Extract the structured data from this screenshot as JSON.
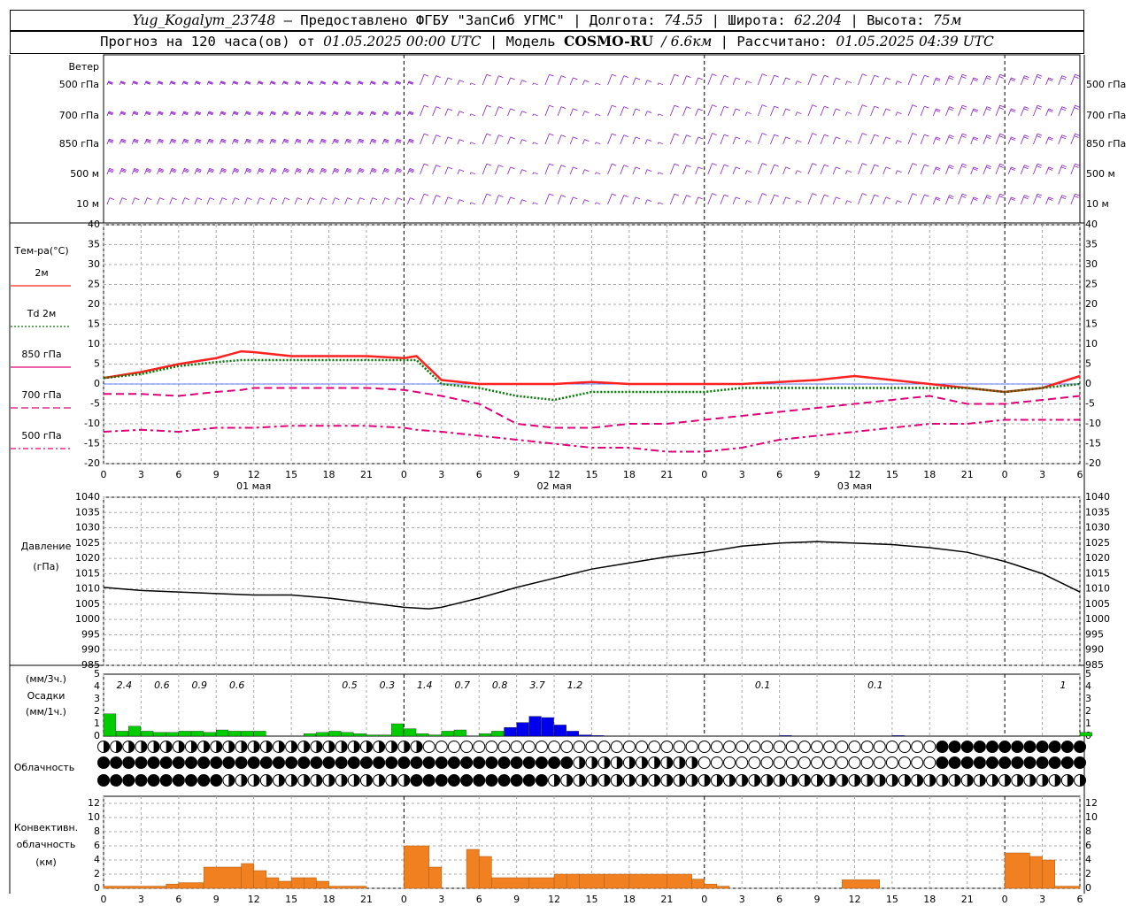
{
  "header": {
    "station": "Yug_Kogalym_23748",
    "provider": "— Предоставлено ФГБУ \"ЗапСиб УГМС\"",
    "lon_label": "Долгота:",
    "lon": "74.55",
    "lat_label": "Широта:",
    "lat": "62.204",
    "alt_label": "Высота:",
    "alt": "75м",
    "forecast_label": "Прогноз на 120 часа(ов) от",
    "forecast_from": "01.05.2025 00:00 UTC",
    "model_label": "Модель",
    "model": "COSMO-RU",
    "resolution": "/ 6.6км",
    "computed_label": "Рассчитано:",
    "computed": "01.05.2025 04:39 UTC"
  },
  "time_axis": {
    "hour_ticks": [
      "0",
      "3",
      "6",
      "9",
      "12",
      "15",
      "18",
      "21",
      "0",
      "3",
      "6",
      "9",
      "12",
      "15",
      "18",
      "21",
      "0",
      "3",
      "6",
      "9",
      "12",
      "15",
      "18",
      "21",
      "0",
      "3",
      "6"
    ],
    "day_labels": [
      "01 мая",
      "02 мая",
      "03 мая"
    ]
  },
  "wind_panel": {
    "title": "Ветер",
    "levels": [
      "500 гПа",
      "700 гПа",
      "850 гПа",
      "500 м",
      "10  м"
    ]
  },
  "temperature_panel": {
    "title": "Тем-ра(°C)",
    "legend": [
      {
        "label": "2м",
        "color": "#ff2020",
        "style": "solid"
      },
      {
        "label": "Td  2м",
        "color": "#007a00",
        "style": "dotted"
      },
      {
        "label": "850 гПа",
        "color": "#e0007a",
        "style": "solid-thin"
      },
      {
        "label": "700 гПа",
        "color": "#e0007a",
        "style": "dash"
      },
      {
        "label": "500 гПа",
        "color": "#e0007a",
        "style": "dashdot"
      }
    ],
    "ticks": [
      "40",
      "35",
      "30",
      "25",
      "20",
      "15",
      "10",
      "5",
      "0",
      "-5",
      "-10",
      "-15",
      "-20"
    ]
  },
  "pressure_panel": {
    "title": "Давление",
    "unit": "(гПа)",
    "ticks": [
      "1040",
      "1035",
      "1030",
      "1025",
      "1020",
      "1015",
      "1010",
      "1005",
      "1000",
      "995",
      "990",
      "985"
    ]
  },
  "precip_panel": {
    "unit3": "(мм/3ч.)",
    "title": "Осадки",
    "unit1": "(мм/1ч.)",
    "ticks": [
      "5",
      "4",
      "3",
      "2",
      "1",
      "0"
    ],
    "sums": [
      {
        "t": 3,
        "v": "2.4"
      },
      {
        "t": 6,
        "v": "0.6"
      },
      {
        "t": 9,
        "v": "0.9"
      },
      {
        "t": 12,
        "v": "0.6"
      },
      {
        "t": 21,
        "v": "0.5"
      },
      {
        "t": 24,
        "v": "0.3"
      },
      {
        "t": 27,
        "v": "1.4"
      },
      {
        "t": 30,
        "v": "0.7"
      },
      {
        "t": 33,
        "v": "0.8"
      },
      {
        "t": 36,
        "v": "3.7"
      },
      {
        "t": 39,
        "v": "1.2"
      },
      {
        "t": 54,
        "v": "0.1"
      },
      {
        "t": 63,
        "v": "0.1"
      },
      {
        "t": 78,
        "v": "1"
      }
    ]
  },
  "cloud_panel": {
    "title": "Облачность"
  },
  "convective_panel": {
    "title1": "Конвективн.",
    "title2": "облачность",
    "unit": "(км)",
    "ticks": [
      "12",
      "10",
      "8",
      "6",
      "4",
      "2",
      "0"
    ]
  },
  "colors": {
    "t2m": "#ff2020",
    "td2m": "#007a00",
    "upper": "#e0007a",
    "wind": "#8a1ccc",
    "precip_rain": "#00cc00",
    "precip_heavy": "#0000ee",
    "convective": "#f08020",
    "pressure": "#000000"
  },
  "chart_data": [
    {
      "type": "line",
      "name": "temperature",
      "x_hours": [
        0,
        3,
        6,
        9,
        11,
        12,
        15,
        18,
        21,
        24,
        25,
        27,
        30,
        33,
        36,
        39,
        42,
        45,
        48,
        51,
        54,
        57,
        60,
        63,
        66,
        69,
        72,
        75,
        78
      ],
      "series": [
        {
          "name": "2м",
          "values": [
            1.5,
            3,
            5,
            6.5,
            8.2,
            8,
            7,
            7,
            7,
            6.5,
            7,
            1,
            0,
            0,
            0,
            0.5,
            0,
            0,
            0,
            0,
            0.5,
            1,
            2,
            1,
            0,
            -1,
            -2,
            -1,
            2
          ]
        },
        {
          "name": "Td  2м",
          "values": [
            1.5,
            2.5,
            4.5,
            5.5,
            6,
            6,
            6,
            6,
            6,
            6,
            6,
            0,
            -1,
            -3,
            -4,
            -2,
            -2,
            -2,
            -2,
            -1,
            -1,
            -1,
            -1,
            -1,
            -1,
            -1,
            -2,
            -1,
            0
          ]
        },
        {
          "name": "700 гПа",
          "values": [
            -2.5,
            -2.5,
            -3,
            -2,
            -1.5,
            -1,
            -1,
            -1,
            -1,
            -1.5,
            -2,
            -3,
            -5,
            -10,
            -11,
            -11,
            -10,
            -10,
            -9,
            -8,
            -7,
            -6,
            -5,
            -4,
            -3,
            -5,
            -5,
            -4,
            -3
          ]
        },
        {
          "name": "500 гПа",
          "values": [
            -12,
            -11.5,
            -12,
            -11,
            -11,
            -11,
            -10.5,
            -10.5,
            -10.5,
            -11,
            -11.5,
            -12,
            -13,
            -14,
            -15,
            -16,
            -16,
            -17,
            -17,
            -16,
            -14,
            -13,
            -12,
            -11,
            -10,
            -10,
            -9,
            -9,
            -9
          ]
        }
      ],
      "ylim": [
        -20,
        40
      ]
    },
    {
      "type": "line",
      "name": "pressure",
      "x_hours": [
        0,
        3,
        6,
        9,
        12,
        15,
        18,
        21,
        24,
        26,
        27,
        30,
        33,
        36,
        39,
        42,
        45,
        48,
        51,
        54,
        57,
        60,
        63,
        66,
        69,
        72,
        75,
        78
      ],
      "values": [
        1010.5,
        1009.5,
        1009,
        1008.5,
        1008,
        1008,
        1007,
        1005.5,
        1004,
        1003.5,
        1004,
        1007,
        1010.5,
        1013.5,
        1016.5,
        1018.5,
        1020.5,
        1022,
        1024,
        1025,
        1025.5,
        1025,
        1024.5,
        1023.5,
        1022,
        1019,
        1015,
        1009
      ],
      "ylim": [
        985,
        1040
      ]
    },
    {
      "type": "bar",
      "name": "precipitation_1h",
      "x_hours": [
        0,
        1,
        2,
        3,
        4,
        5,
        6,
        7,
        8,
        9,
        10,
        11,
        12,
        13,
        14,
        15,
        16,
        17,
        18,
        19,
        20,
        21,
        22,
        23,
        24,
        25,
        26,
        27,
        28,
        29,
        30,
        31,
        32,
        33,
        34,
        35,
        36,
        37,
        38,
        39,
        54,
        63,
        78
      ],
      "values": [
        1.8,
        0.4,
        0.8,
        0.4,
        0.3,
        0.3,
        0.4,
        0.4,
        0.3,
        0.5,
        0.4,
        0.4,
        0.4,
        0,
        0,
        0,
        0.2,
        0.3,
        0.4,
        0.3,
        0.2,
        0.1,
        0.1,
        1.0,
        0.6,
        0.2,
        0.1,
        0.4,
        0.5,
        0,
        0.2,
        0.4,
        0.7,
        1.1,
        1.6,
        1.5,
        0.9,
        0.4,
        0.1,
        0.05,
        0.05,
        0.05,
        0.3
      ],
      "ylim": [
        0,
        5
      ]
    },
    {
      "type": "bar",
      "name": "convective_cloud",
      "x_ranges": [
        [
          0,
          5,
          0.3
        ],
        [
          5,
          6,
          0.6
        ],
        [
          6,
          8,
          0.8
        ],
        [
          8,
          11,
          3
        ],
        [
          11,
          12,
          3.5
        ],
        [
          12,
          13,
          2.5
        ],
        [
          13,
          14,
          1.5
        ],
        [
          14,
          15,
          1
        ],
        [
          15,
          16,
          1.5
        ],
        [
          16,
          17,
          1.5
        ],
        [
          17,
          18,
          1
        ],
        [
          18,
          21,
          0.3
        ],
        [
          24,
          26,
          6
        ],
        [
          26,
          27,
          3
        ],
        [
          29,
          30,
          5.5
        ],
        [
          30,
          31,
          4.5
        ],
        [
          31,
          34,
          1.5
        ],
        [
          34,
          36,
          1.5
        ],
        [
          36,
          37,
          2
        ],
        [
          37,
          38,
          2
        ],
        [
          38,
          40,
          2
        ],
        [
          40,
          42,
          2
        ],
        [
          42,
          45,
          2
        ],
        [
          45,
          47,
          2
        ],
        [
          47,
          48,
          1.3
        ],
        [
          48,
          49,
          0.6
        ],
        [
          49,
          50,
          0.3
        ],
        [
          59,
          62,
          1.2
        ],
        [
          72,
          74,
          5
        ],
        [
          74,
          75,
          4.5
        ],
        [
          75,
          76,
          4
        ],
        [
          76,
          78,
          0.3
        ]
      ],
      "ylim": [
        0,
        13
      ]
    }
  ]
}
